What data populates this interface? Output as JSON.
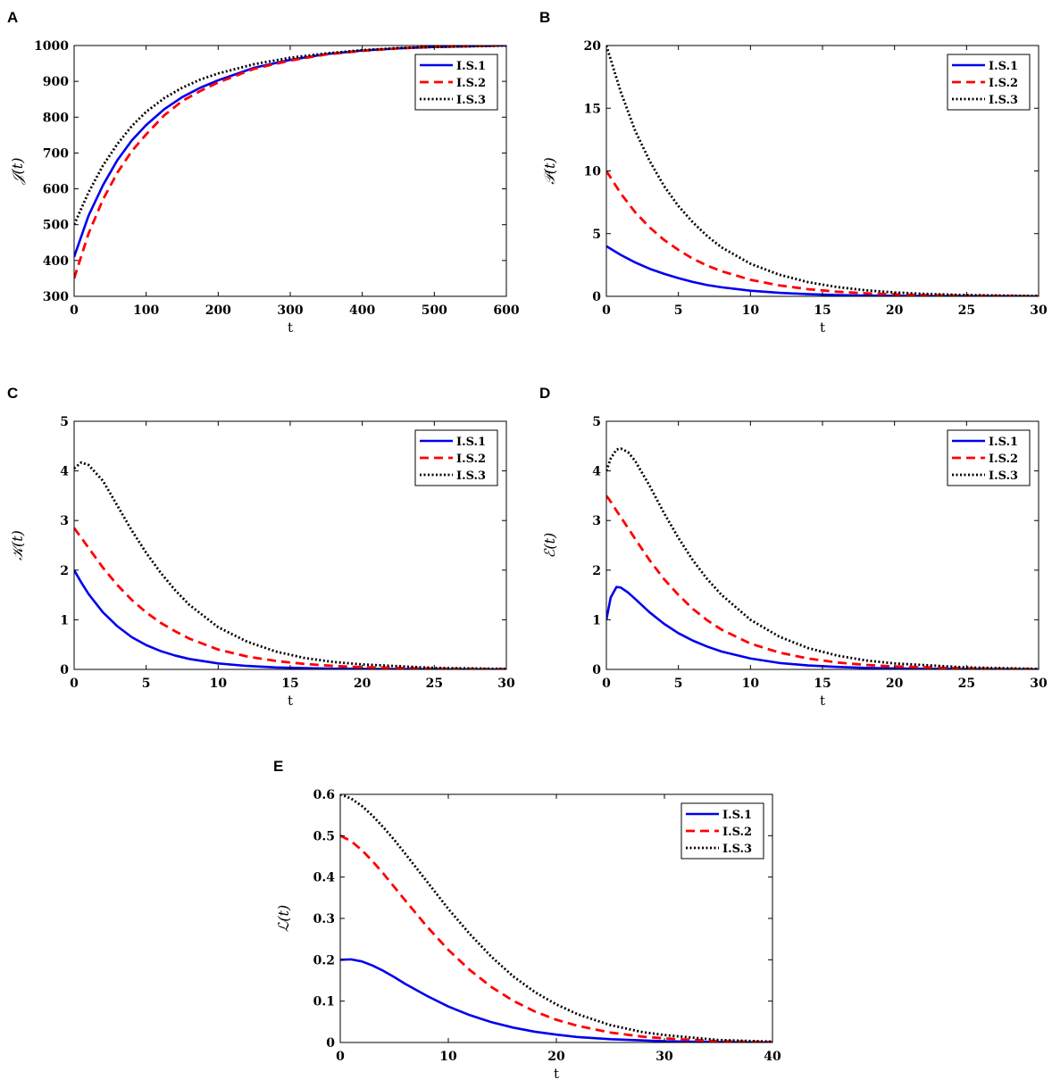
{
  "figure": {
    "background": "#ffffff"
  },
  "legend_entries": [
    "I.S.1",
    "I.S.2",
    "I.S.3"
  ],
  "series_styles": [
    {
      "name": "I.S.1",
      "color": "#0000ee",
      "dash": "solid"
    },
    {
      "name": "I.S.2",
      "color": "#ff0000",
      "dash": "dashed"
    },
    {
      "name": "I.S.3",
      "color": "#000000",
      "dash": "dotted"
    }
  ],
  "chart_data": [
    {
      "panel": "A",
      "type": "line",
      "xlabel": "t",
      "ylabel": "𝒥(t)",
      "xlim": [
        0,
        600
      ],
      "ylim": [
        300,
        1000
      ],
      "xticks": [
        0,
        100,
        200,
        300,
        400,
        500,
        600
      ],
      "yticks": [
        300,
        400,
        500,
        600,
        700,
        800,
        900,
        1000
      ],
      "legend_position": "top-right",
      "x": [
        0,
        20,
        40,
        60,
        80,
        100,
        125,
        150,
        175,
        200,
        250,
        300,
        350,
        400,
        450,
        500,
        550,
        600
      ],
      "series": [
        {
          "name": "I.S.1",
          "values": [
            410,
            525,
            610,
            680,
            735,
            778,
            822,
            856,
            882,
            903,
            938,
            960,
            976,
            986,
            992,
            996,
            998,
            1000
          ]
        },
        {
          "name": "I.S.2",
          "values": [
            350,
            475,
            570,
            645,
            705,
            752,
            805,
            845,
            873,
            897,
            935,
            958,
            975,
            985,
            992,
            996,
            998,
            1000
          ]
        },
        {
          "name": "I.S.3",
          "values": [
            500,
            590,
            665,
            725,
            775,
            815,
            853,
            882,
            905,
            922,
            948,
            966,
            978,
            987,
            993,
            996,
            998,
            1000
          ]
        }
      ]
    },
    {
      "panel": "B",
      "type": "line",
      "xlabel": "t",
      "ylabel": "𝒫(t)",
      "xlim": [
        0,
        30
      ],
      "ylim": [
        0,
        20
      ],
      "xticks": [
        0,
        5,
        10,
        15,
        20,
        25,
        30
      ],
      "yticks": [
        0,
        5,
        10,
        15,
        20
      ],
      "legend_position": "top-right",
      "x": [
        0,
        1,
        2,
        3,
        4,
        5,
        6,
        7,
        8,
        10,
        12,
        14,
        16,
        18,
        20,
        22,
        25,
        30
      ],
      "series": [
        {
          "name": "I.S.1",
          "values": [
            4.0,
            3.3,
            2.7,
            2.2,
            1.8,
            1.45,
            1.15,
            0.9,
            0.72,
            0.45,
            0.28,
            0.17,
            0.1,
            0.06,
            0.04,
            0.02,
            0.01,
            0.0
          ]
        },
        {
          "name": "I.S.2",
          "values": [
            10.0,
            8.2,
            6.7,
            5.5,
            4.5,
            3.7,
            3.0,
            2.45,
            2.0,
            1.32,
            0.87,
            0.57,
            0.37,
            0.24,
            0.16,
            0.1,
            0.05,
            0.01
          ]
        },
        {
          "name": "I.S.3",
          "values": [
            20.0,
            16.3,
            13.2,
            10.8,
            8.8,
            7.2,
            5.9,
            4.8,
            3.9,
            2.6,
            1.72,
            1.13,
            0.74,
            0.48,
            0.31,
            0.2,
            0.1,
            0.02
          ]
        }
      ]
    },
    {
      "panel": "C",
      "type": "line",
      "xlabel": "t",
      "ylabel": "𝒦(t)",
      "xlim": [
        0,
        30
      ],
      "ylim": [
        0,
        5
      ],
      "xticks": [
        0,
        5,
        10,
        15,
        20,
        25,
        30
      ],
      "yticks": [
        0,
        1,
        2,
        3,
        4,
        5
      ],
      "legend_position": "top-right",
      "x": [
        0,
        0.5,
        1,
        2,
        3,
        4,
        5,
        6,
        7,
        8,
        10,
        12,
        14,
        16,
        18,
        20,
        25,
        30
      ],
      "series": [
        {
          "name": "I.S.1",
          "values": [
            2.0,
            1.75,
            1.52,
            1.15,
            0.87,
            0.65,
            0.49,
            0.37,
            0.28,
            0.21,
            0.12,
            0.07,
            0.04,
            0.025,
            0.015,
            0.01,
            0.003,
            0.0
          ]
        },
        {
          "name": "I.S.2",
          "values": [
            2.85,
            2.65,
            2.45,
            2.05,
            1.7,
            1.4,
            1.15,
            0.94,
            0.77,
            0.62,
            0.4,
            0.26,
            0.17,
            0.11,
            0.07,
            0.045,
            0.015,
            0.005
          ]
        },
        {
          "name": "I.S.3",
          "values": [
            4.05,
            4.17,
            4.12,
            3.8,
            3.3,
            2.8,
            2.35,
            1.95,
            1.6,
            1.3,
            0.85,
            0.56,
            0.36,
            0.23,
            0.15,
            0.1,
            0.03,
            0.01
          ]
        }
      ]
    },
    {
      "panel": "D",
      "type": "line",
      "xlabel": "t",
      "ylabel": "ℰ(t)",
      "xlim": [
        0,
        30
      ],
      "ylim": [
        0,
        5
      ],
      "xticks": [
        0,
        5,
        10,
        15,
        20,
        25,
        30
      ],
      "yticks": [
        0,
        1,
        2,
        3,
        4,
        5
      ],
      "legend_position": "top-right",
      "x": [
        0,
        0.3,
        0.7,
        1,
        1.5,
        2,
        3,
        4,
        5,
        6,
        7,
        8,
        10,
        12,
        14,
        16,
        18,
        20,
        25,
        30
      ],
      "series": [
        {
          "name": "I.S.1",
          "values": [
            1.0,
            1.45,
            1.66,
            1.65,
            1.55,
            1.42,
            1.15,
            0.92,
            0.73,
            0.58,
            0.46,
            0.36,
            0.22,
            0.13,
            0.08,
            0.05,
            0.03,
            0.02,
            0.005,
            0.0
          ]
        },
        {
          "name": "I.S.2",
          "values": [
            3.5,
            3.38,
            3.2,
            3.07,
            2.85,
            2.63,
            2.2,
            1.82,
            1.5,
            1.22,
            0.99,
            0.8,
            0.52,
            0.34,
            0.22,
            0.14,
            0.09,
            0.06,
            0.02,
            0.005
          ]
        },
        {
          "name": "I.S.3",
          "values": [
            4.0,
            4.25,
            4.43,
            4.45,
            4.38,
            4.2,
            3.7,
            3.15,
            2.65,
            2.2,
            1.82,
            1.5,
            1.0,
            0.66,
            0.43,
            0.28,
            0.18,
            0.12,
            0.04,
            0.01
          ]
        }
      ]
    },
    {
      "panel": "E",
      "type": "line",
      "xlabel": "t",
      "ylabel": "ℒ(t)",
      "xlim": [
        0,
        40
      ],
      "ylim": [
        0,
        0.6
      ],
      "xticks": [
        0,
        10,
        20,
        30,
        40
      ],
      "yticks": [
        0,
        0.1,
        0.2,
        0.3,
        0.4,
        0.5,
        0.6
      ],
      "legend_position": "top-right",
      "x": [
        0,
        1,
        2,
        3,
        4,
        5,
        6,
        8,
        10,
        12,
        14,
        16,
        18,
        20,
        22,
        25,
        28,
        30,
        35,
        40
      ],
      "series": [
        {
          "name": "I.S.1",
          "values": [
            0.2,
            0.201,
            0.196,
            0.186,
            0.173,
            0.158,
            0.142,
            0.113,
            0.087,
            0.066,
            0.049,
            0.036,
            0.026,
            0.019,
            0.013,
            0.008,
            0.005,
            0.003,
            0.001,
            0.0
          ]
        },
        {
          "name": "I.S.2",
          "values": [
            0.5,
            0.487,
            0.465,
            0.438,
            0.408,
            0.376,
            0.344,
            0.281,
            0.224,
            0.175,
            0.134,
            0.101,
            0.075,
            0.055,
            0.04,
            0.024,
            0.014,
            0.01,
            0.003,
            0.001
          ]
        },
        {
          "name": "I.S.3",
          "values": [
            0.6,
            0.59,
            0.572,
            0.548,
            0.52,
            0.49,
            0.457,
            0.39,
            0.323,
            0.262,
            0.207,
            0.16,
            0.122,
            0.092,
            0.068,
            0.042,
            0.025,
            0.018,
            0.006,
            0.002
          ]
        }
      ]
    }
  ]
}
